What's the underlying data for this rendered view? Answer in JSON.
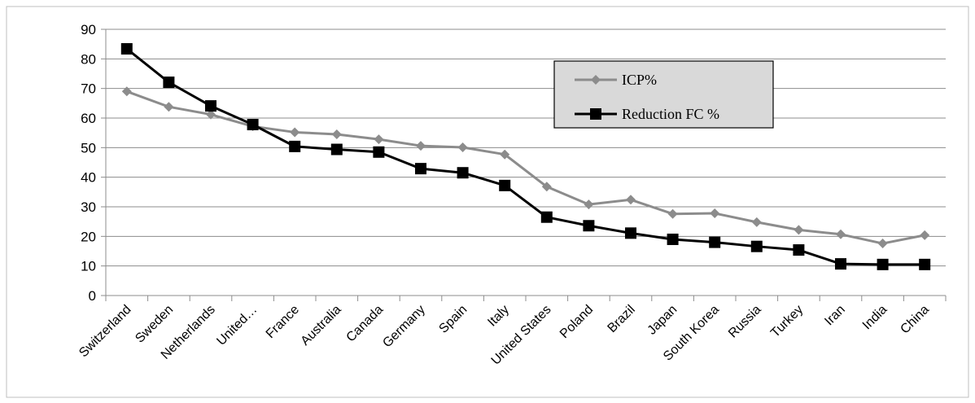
{
  "chart_data": {
    "type": "line",
    "title": "",
    "xlabel": "",
    "ylabel": "",
    "ylim": [
      0,
      90
    ],
    "yticks": [
      0,
      10,
      20,
      30,
      40,
      50,
      60,
      70,
      80,
      90
    ],
    "grid": true,
    "legend_position": "top-right",
    "categories": [
      "Switzerland",
      "Sweden",
      "Netherlands",
      "United…",
      "France",
      "Australia",
      "Canada",
      "Germany",
      "Spain",
      "Italy",
      "United States",
      "Poland",
      "Brazil",
      "Japan",
      "South Korea",
      "Russia",
      "Turkey",
      "Iran",
      "India",
      "China"
    ],
    "series": [
      {
        "name": "ICP%",
        "color": "#8c8c8c",
        "marker": "diamond",
        "values": [
          69,
          63.8,
          61.2,
          57.2,
          55.2,
          54.5,
          52.8,
          50.6,
          50.1,
          47.7,
          36.8,
          30.8,
          32.4,
          27.6,
          27.8,
          24.8,
          22.2,
          20.7,
          17.6,
          20.4
        ]
      },
      {
        "name": "Reduction FC %",
        "color": "#000000",
        "marker": "square",
        "values": [
          83.4,
          72.1,
          64.1,
          57.8,
          50.4,
          49.4,
          48.5,
          42.9,
          41.5,
          37.2,
          26.5,
          23.6,
          21.1,
          19,
          18,
          16.6,
          15.4,
          10.7,
          10.5,
          10.5
        ]
      }
    ]
  }
}
